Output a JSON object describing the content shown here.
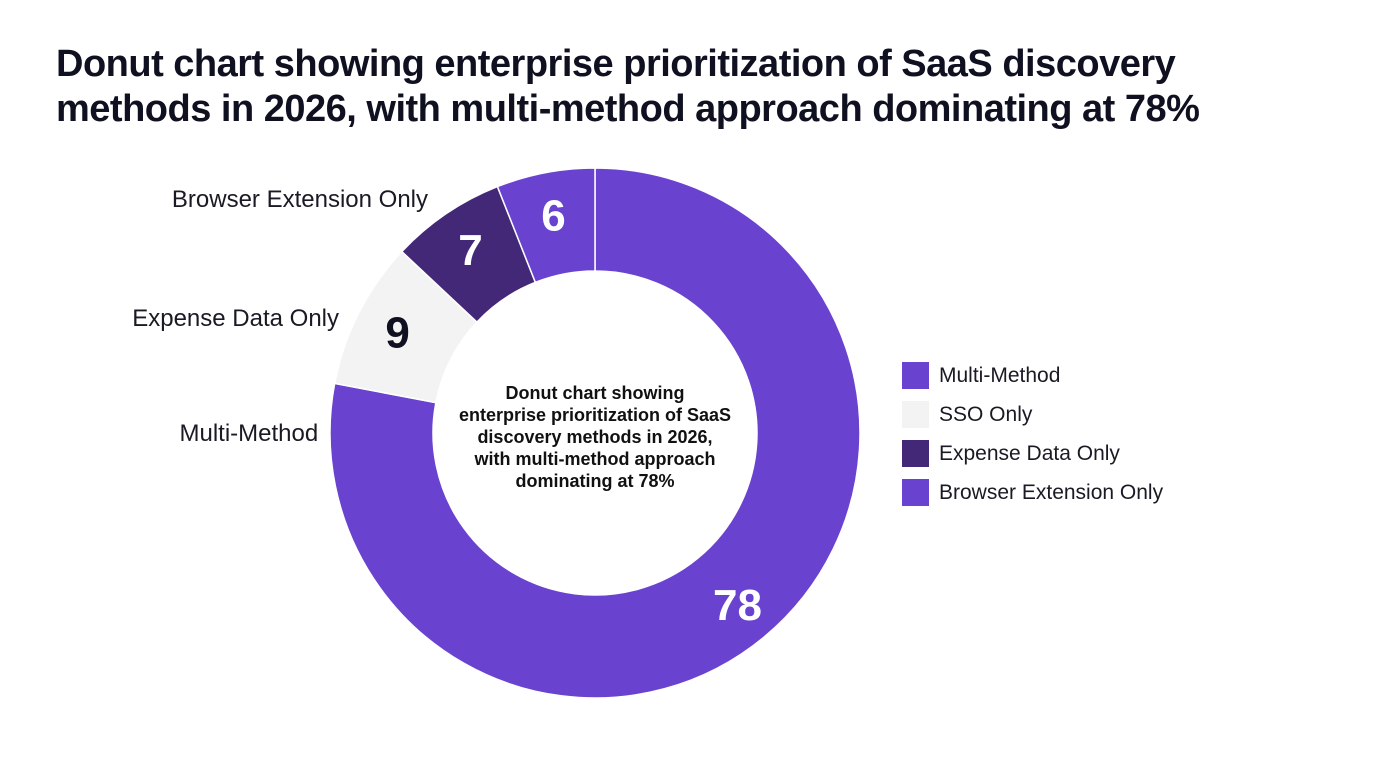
{
  "title_lines": [
    "Donut chart showing enterprise prioritization of SaaS discovery",
    "methods in 2026, with multi-method approach dominating at 78%"
  ],
  "center_text_lines": [
    "Donut chart showing",
    "enterprise prioritization of SaaS",
    "discovery methods in 2026,",
    "with multi-method approach",
    "dominating at 78%"
  ],
  "chart_data": {
    "type": "pie",
    "donut": true,
    "title": "Donut chart showing enterprise prioritization of SaaS discovery methods in 2026, with multi-method approach dominating at 78%",
    "categories": [
      "Multi-Method",
      "SSO Only",
      "Expense Data Only",
      "Browser Extension Only"
    ],
    "values": [
      78,
      9,
      7,
      6
    ],
    "colors": [
      "#6a42d0",
      "#f3f3f4",
      "#432878",
      "#6a42d0"
    ],
    "label_colors": [
      "#ffffff",
      "#0f1020",
      "#ffffff",
      "#ffffff"
    ],
    "outer_labels": [
      "Multi-Method",
      "",
      "Expense Data Only",
      "Browser Extension Only"
    ],
    "legend_position": "right"
  },
  "legend": [
    {
      "label": "Multi-Method",
      "color": "#6a42d0"
    },
    {
      "label": "SSO Only",
      "color": "#f3f3f4"
    },
    {
      "label": "Expense Data Only",
      "color": "#432878"
    },
    {
      "label": "Browser Extension Only",
      "color": "#6a42d0"
    }
  ]
}
